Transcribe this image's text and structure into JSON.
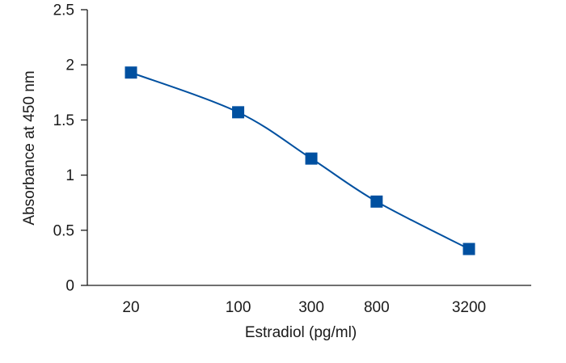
{
  "chart_data": {
    "type": "line",
    "title": "",
    "xlabel": "Estradiol (pg/ml)",
    "ylabel": "Absorbance at 450 nm",
    "x_scale": "log",
    "x": [
      20,
      100,
      300,
      800,
      3200
    ],
    "x_tick_labels": [
      "20",
      "100",
      "300",
      "800",
      "3200"
    ],
    "y_ticks": [
      0,
      0.5,
      1,
      1.5,
      2,
      2.5
    ],
    "y_tick_labels": [
      "0",
      "0.5",
      "1",
      "1.5",
      "2",
      "2.5"
    ],
    "ylim": [
      0,
      2.5
    ],
    "grid": false,
    "series": [
      {
        "values": [
          1.93,
          1.57,
          1.15,
          0.76,
          0.33
        ],
        "color": "#0050a0",
        "marker": "square"
      }
    ]
  }
}
